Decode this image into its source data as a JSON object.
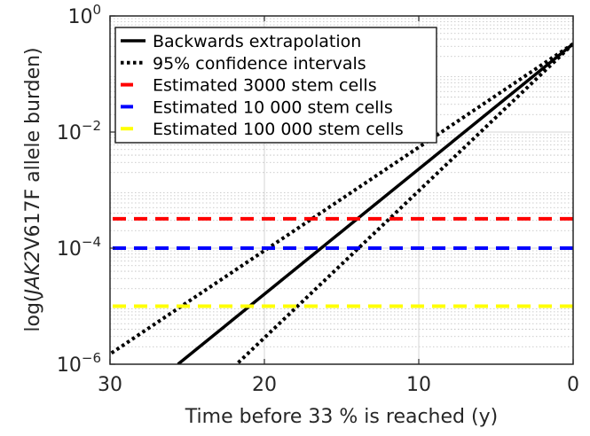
{
  "chart_data": {
    "type": "line",
    "title": "",
    "xlabel": "Time before 33 % is reached (y)",
    "ylabel_prefix": "log(",
    "ylabel_gene": "JAK2",
    "ylabel_suffix": "V617F allele burden)",
    "x_reversed": true,
    "xlim": [
      0,
      30
    ],
    "ylim": [
      1e-06,
      1
    ],
    "y_scale": "log",
    "grid": true,
    "legend_position": "top-left",
    "x_ticks": [
      {
        "value": 30,
        "label": "30"
      },
      {
        "value": 20,
        "label": "20"
      },
      {
        "value": 10,
        "label": "10"
      },
      {
        "value": 0,
        "label": "0"
      }
    ],
    "y_ticks": [
      {
        "value": 1,
        "base": "10",
        "exp": "0"
      },
      {
        "value": 0.01,
        "base": "10",
        "exp": "−2"
      },
      {
        "value": 0.0001,
        "base": "10",
        "exp": "−4"
      },
      {
        "value": 1e-06,
        "base": "10",
        "exp": "−6"
      }
    ],
    "series": [
      {
        "name": "Backwards extrapolation",
        "style": "solid",
        "color": "#000000",
        "points": [
          [
            0,
            0.33
          ],
          [
            25.6,
            1e-06
          ]
        ]
      },
      {
        "name": "95% confidence intervals",
        "style": "dotted",
        "color": "#000000",
        "points": [
          [
            0,
            0.33
          ],
          [
            30,
            1.5e-06
          ]
        ]
      },
      {
        "name": "",
        "style": "dotted",
        "color": "#000000",
        "points": [
          [
            0,
            0.33
          ],
          [
            21.8,
            1e-06
          ]
        ]
      },
      {
        "name": "Estimated 3000 stem cells",
        "style": "dashed",
        "color": "#ff0000",
        "points": [
          [
            0,
            0.00032
          ],
          [
            30,
            0.00032
          ]
        ]
      },
      {
        "name": "Estimated 10 000 stem cells",
        "style": "dashed",
        "color": "#0000ff",
        "points": [
          [
            0,
            0.0001
          ],
          [
            30,
            0.0001
          ]
        ]
      },
      {
        "name": "Estimated 100 000 stem cells",
        "style": "dashed",
        "color": "#ffff00",
        "points": [
          [
            0,
            1e-05
          ],
          [
            30,
            1e-05
          ]
        ]
      }
    ]
  }
}
